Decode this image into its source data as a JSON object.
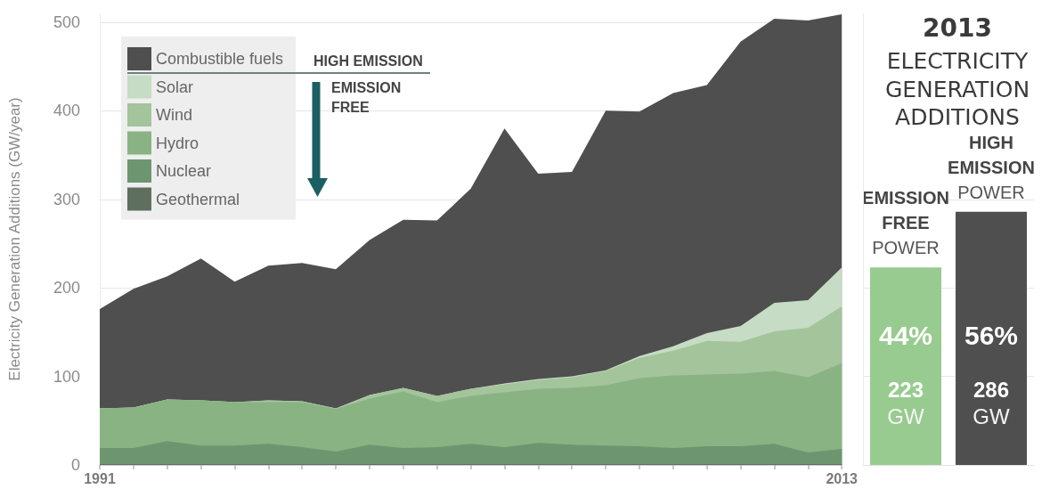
{
  "chart_data": [
    {
      "type": "area",
      "ylabel": "Electricity Generation Additions (GW/year)",
      "x": [
        1991,
        1992,
        1993,
        1994,
        1995,
        1996,
        1997,
        1998,
        1999,
        2000,
        2001,
        2002,
        2003,
        2004,
        2005,
        2006,
        2007,
        2008,
        2009,
        2010,
        2011,
        2012,
        2013
      ],
      "xlim": [
        1991,
        2013
      ],
      "xticks": [
        1991,
        {
          "value": 1992,
          "label": null
        },
        {
          "value": 1993,
          "label": null
        },
        {
          "value": 1994,
          "label": null
        },
        {
          "value": 1995,
          "label": null
        },
        {
          "value": 1996,
          "label": null
        },
        {
          "value": 1997,
          "label": null
        },
        {
          "value": 1998,
          "label": null
        },
        {
          "value": 1999,
          "label": null
        },
        {
          "value": 2000,
          "label": null
        },
        {
          "value": 2001,
          "label": null
        },
        {
          "value": 2002,
          "label": null
        },
        {
          "value": 2003,
          "label": null
        },
        {
          "value": 2004,
          "label": null
        },
        {
          "value": 2005,
          "label": null
        },
        {
          "value": 2006,
          "label": null
        },
        {
          "value": 2007,
          "label": null
        },
        {
          "value": 2008,
          "label": null
        },
        {
          "value": 2009,
          "label": null
        },
        {
          "value": 2010,
          "label": null
        },
        {
          "value": 2011,
          "label": null
        },
        {
          "value": 2012,
          "label": null
        },
        2013
      ],
      "ylim": [
        0,
        510
      ],
      "yticks": [
        0,
        100,
        200,
        300,
        400,
        500
      ],
      "stacked": true,
      "grid": "y",
      "legend": "top left",
      "annotations": [
        "HIGH EMISSION",
        "EMISSION FREE"
      ],
      "series": [
        {
          "name": "Geothermal",
          "color": "#5f6f5f",
          "values": [
            1,
            1,
            1,
            1,
            1,
            1,
            1,
            1,
            1,
            1,
            1,
            1,
            1,
            1,
            1,
            1,
            1,
            1,
            1,
            1,
            1,
            1,
            1
          ]
        },
        {
          "name": "Nuclear",
          "color": "#6d9670",
          "values": [
            18,
            18,
            26,
            21,
            21,
            23,
            19,
            14,
            22,
            18,
            19,
            23,
            19,
            24,
            22,
            21,
            20,
            18,
            20,
            20,
            23,
            13,
            17
          ]
        },
        {
          "name": "Hydro",
          "color": "#8ab384",
          "values": [
            45,
            46,
            47,
            51,
            49,
            47,
            51,
            48,
            52,
            64,
            51,
            54,
            62,
            61,
            64,
            68,
            77,
            82,
            81,
            82,
            82,
            85,
            97
          ]
        },
        {
          "name": "Wind",
          "color": "#a4c49c",
          "values": [
            0,
            0,
            0,
            0,
            0,
            2,
            1,
            1,
            4,
            4,
            7,
            8,
            9,
            10,
            12,
            16,
            23,
            28,
            38,
            36,
            45,
            56,
            64
          ]
        },
        {
          "name": "Solar",
          "color": "#c6dcc4",
          "values": [
            0,
            0,
            0,
            0,
            0,
            0,
            0,
            0,
            0,
            0,
            0,
            0,
            1,
            1,
            1,
            1,
            2,
            5,
            9,
            18,
            32,
            31,
            44
          ]
        },
        {
          "name": "Combustible fuels",
          "color": "#4f4f4f",
          "values": [
            112,
            134,
            139,
            160,
            136,
            152,
            156,
            157,
            175,
            190,
            198,
            226,
            288,
            232,
            231,
            293,
            276,
            286,
            280,
            321,
            321,
            316,
            286
          ]
        }
      ]
    },
    {
      "type": "bar",
      "title": "2013",
      "subtitle": "ELECTRICITY GENERATION ADDITIONS",
      "categories": [
        "EMISSION FREE POWER",
        "HIGH EMISSION POWER"
      ],
      "values": [
        223,
        286
      ],
      "colors": [
        "#98cb8f",
        "#4f4f4f"
      ],
      "value_labels": [
        "44%\n223\nGW",
        "56%\n286\nGW"
      ],
      "ylim": [
        0,
        510
      ],
      "yticks": [
        0,
        100,
        200,
        300
      ],
      "grid": "y",
      "tick_labels": "x"
    }
  ]
}
